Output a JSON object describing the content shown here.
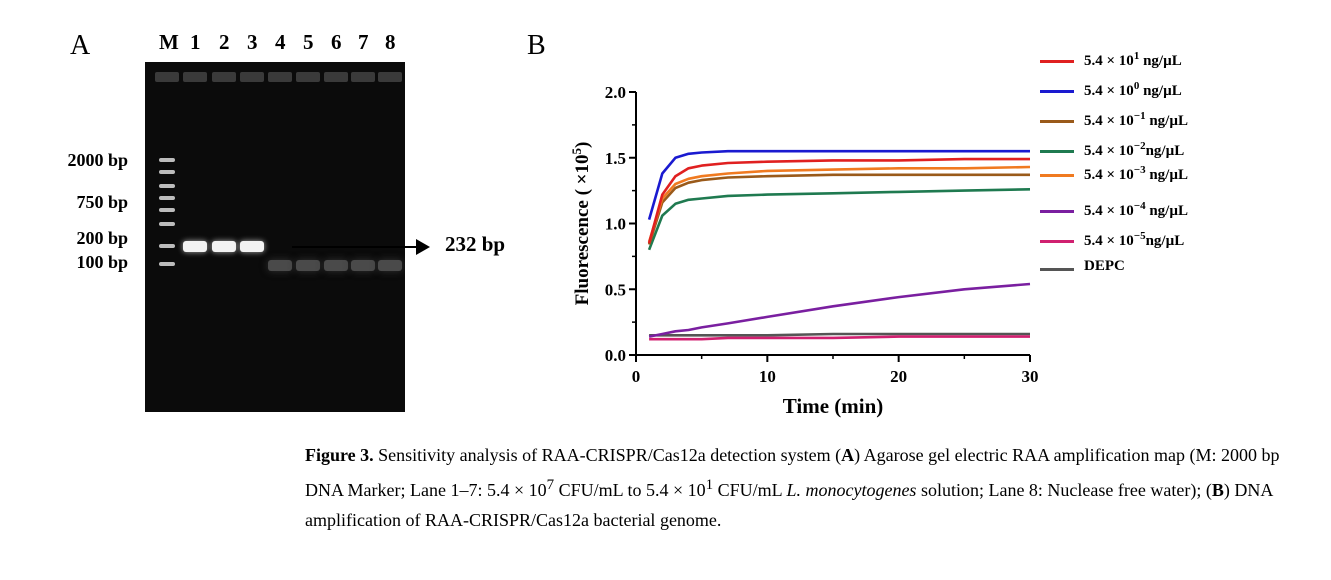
{
  "panel_a": {
    "label": "A",
    "lane_labels": [
      "M",
      "1",
      "2",
      "3",
      "4",
      "5",
      "6",
      "7",
      "8"
    ],
    "bp_labels": [
      "2000 bp",
      "750 bp",
      "200 bp",
      "100 bp"
    ],
    "arrow_label": "232 bp"
  },
  "panel_b": {
    "label": "B"
  },
  "chart_data": {
    "type": "line",
    "xlabel": "Time (min)",
    "ylabel": "Fluorescence ( ×10",
    "ylabel_sup": "5",
    "ylabel_end": ")",
    "xlim": [
      0,
      30
    ],
    "ylim": [
      0,
      2.0
    ],
    "x_ticks": [
      "0",
      "10",
      "20",
      "30"
    ],
    "y_ticks": [
      "0.0",
      "0.5",
      "1.0",
      "1.5",
      "2.0"
    ],
    "x": [
      1,
      2,
      3,
      4,
      5,
      7,
      10,
      15,
      20,
      25,
      30
    ],
    "series": [
      {
        "name": "5.4 × 10",
        "sup": "1",
        "unit": " ng/µL",
        "color": "#e02020",
        "values": [
          0.85,
          1.22,
          1.36,
          1.42,
          1.44,
          1.46,
          1.47,
          1.48,
          1.48,
          1.49,
          1.49
        ]
      },
      {
        "name": "5.4 × 10",
        "sup": "0",
        "unit": " ng/µL",
        "color": "#1a1ad0",
        "values": [
          1.03,
          1.38,
          1.5,
          1.53,
          1.54,
          1.55,
          1.55,
          1.55,
          1.55,
          1.55,
          1.55
        ]
      },
      {
        "name": "5.4 × 10",
        "sup": "−1",
        "unit": " ng/µL",
        "color": "#9a5a1a",
        "values": [
          0.84,
          1.16,
          1.27,
          1.31,
          1.33,
          1.35,
          1.36,
          1.37,
          1.37,
          1.37,
          1.37
        ]
      },
      {
        "name": "5.4 × 10",
        "sup": "−2",
        "unit": "ng/µL",
        "color": "#1f7a50",
        "values": [
          0.8,
          1.06,
          1.15,
          1.18,
          1.19,
          1.21,
          1.22,
          1.23,
          1.24,
          1.25,
          1.26
        ]
      },
      {
        "name": "5.4 × 10",
        "sup": "−3",
        "unit": " ng/µL",
        "color": "#f07a20",
        "values": [
          0.86,
          1.19,
          1.3,
          1.34,
          1.36,
          1.38,
          1.4,
          1.41,
          1.42,
          1.42,
          1.43
        ]
      },
      {
        "name": "5.4 × 10",
        "sup": "−4",
        "unit": " ng/µL",
        "color": "#7a1fa0",
        "values": [
          0.14,
          0.16,
          0.18,
          0.19,
          0.21,
          0.24,
          0.29,
          0.37,
          0.44,
          0.5,
          0.54
        ]
      },
      {
        "name": "5.4 × 10",
        "sup": "−5",
        "unit": "ng/µL",
        "color": "#d02070",
        "values": [
          0.12,
          0.12,
          0.12,
          0.12,
          0.12,
          0.13,
          0.13,
          0.13,
          0.14,
          0.14,
          0.14
        ]
      },
      {
        "name": "DEPC",
        "sup": "",
        "unit": "",
        "color": "#555555",
        "values": [
          0.15,
          0.15,
          0.15,
          0.15,
          0.15,
          0.15,
          0.15,
          0.16,
          0.16,
          0.16,
          0.16
        ]
      }
    ]
  },
  "caption": {
    "fig_label": "Figure 3.",
    "t1": " Sensitivity analysis of RAA-CRISPR/Cas12a detection system (",
    "a": "A",
    "t2": ") Agarose gel electric RAA amplification map (M: 2000 bp DNA Marker; Lane 1–7: 5.4 × 10",
    "sup7": "7",
    "t3": " CFU/mL to 5.4 × 10",
    "sup1": "1",
    "t4": " CFU/mL ",
    "organism": "L. monocytogenes",
    "t5": " solution; Lane 8: Nuclease free water); (",
    "b": "B",
    "t6": ") DNA amplification of RAA-CRISPR/Cas12a bacterial genome."
  }
}
